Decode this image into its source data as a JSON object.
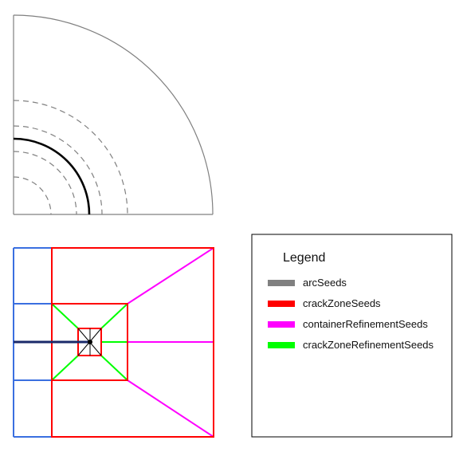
{
  "legend": {
    "title": "Legend",
    "items": [
      {
        "label": "arcSeeds",
        "color": "#808080"
      },
      {
        "label": "crackZoneSeeds",
        "color": "#ff0000"
      },
      {
        "label": "containerRefinementSeeds",
        "color": "#ff00ff"
      },
      {
        "label": "crackZoneRefinementSeeds",
        "color": "#00ff00"
      }
    ]
  },
  "colors": {
    "outline": "#808080",
    "crack_front": "#000000",
    "blue_seeds": "#3a6fe0",
    "crack_line": "#1a2a6a"
  },
  "quarter_circle_panel": {
    "outer_arc": "solid-gray",
    "crack_arc": "solid-black",
    "refinement_arcs": "dashed-gray",
    "dashed_arc_count": 4
  }
}
